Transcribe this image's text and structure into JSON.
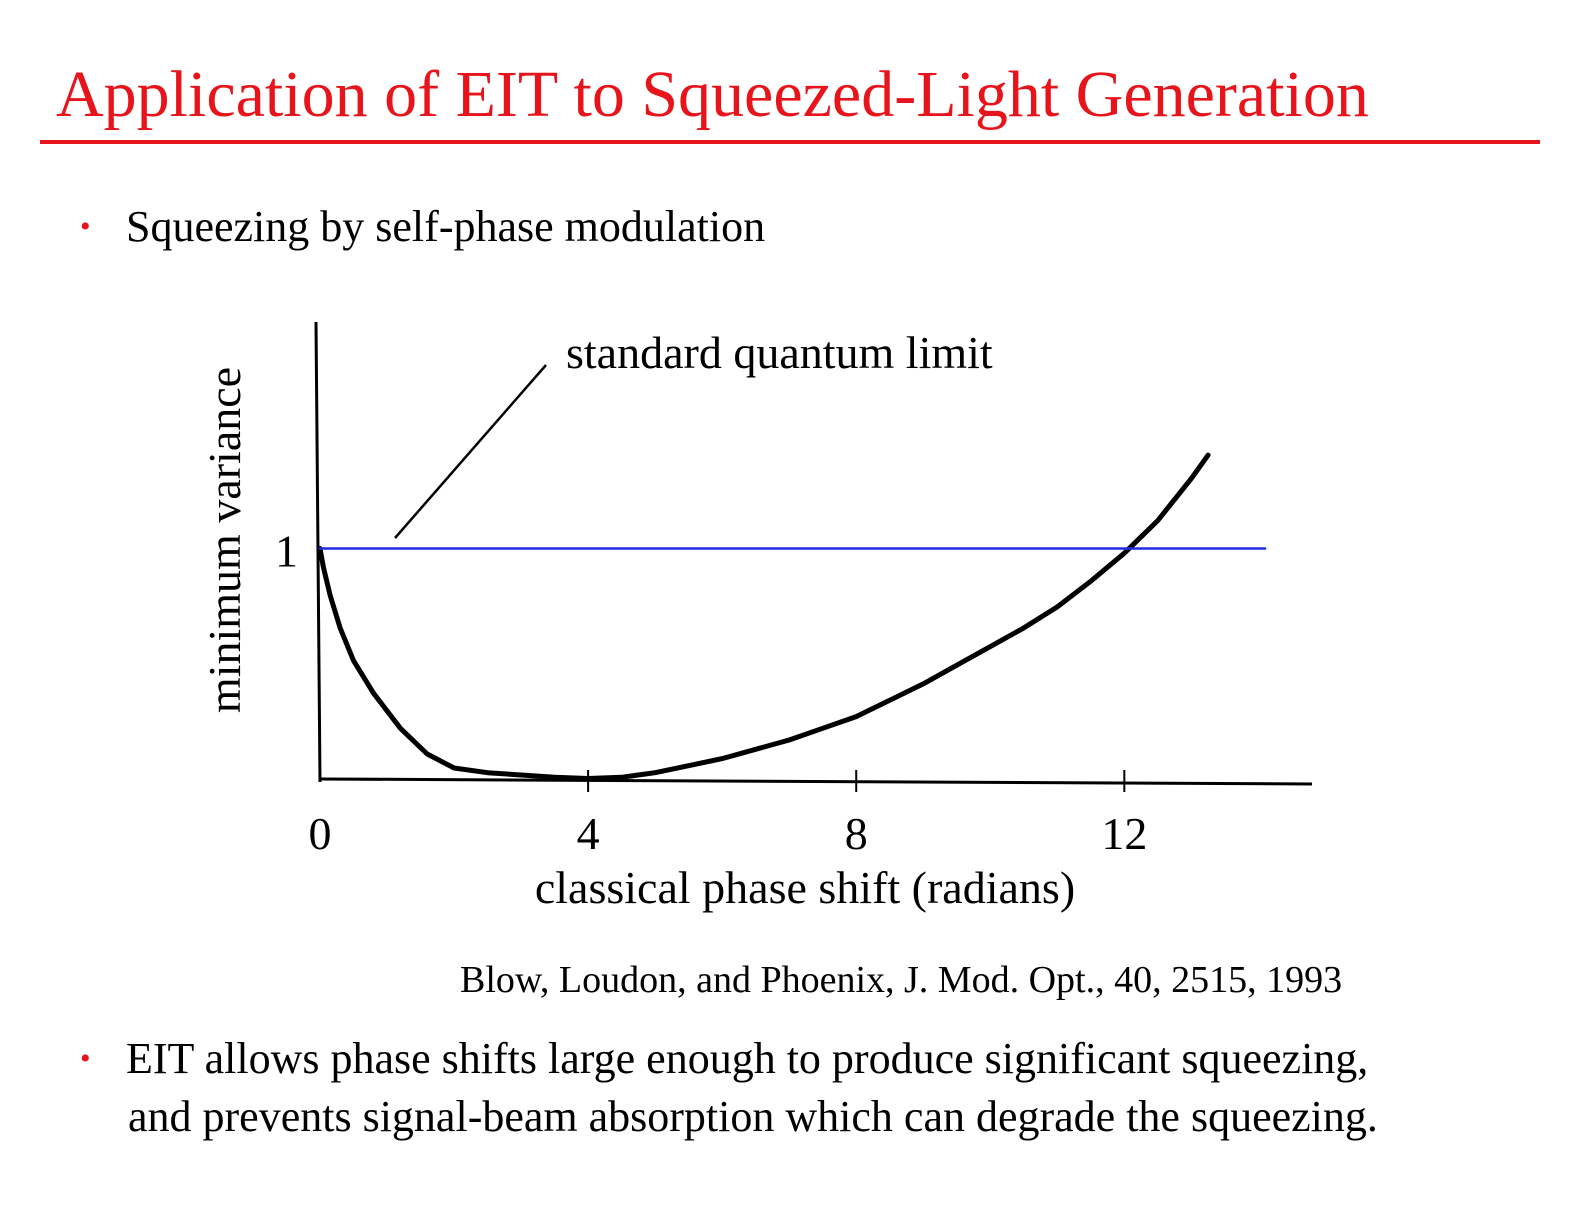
{
  "slide": {
    "title": "Application of  EIT to Squeezed-Light Generation",
    "bullet1": "Squeezing by self-phase modulation",
    "bullet2_line1": "EIT allows phase shifts large enough to produce significant squeezing,",
    "bullet2_line2": "and prevents signal-beam absorption which can degrade the squeezing.",
    "bullet_symbol": "•",
    "citation": "Blow, Loudon, and Phoenix, J. Mod. Opt., 40, 2515, 1993",
    "accent_color": "#e8141b"
  },
  "chart_data": {
    "type": "line",
    "title": "",
    "xlabel": "classical phase shift (radians)",
    "ylabel": "minimum variance",
    "x_ticks": [
      0,
      4,
      8,
      12
    ],
    "y_ticks": [
      1
    ],
    "xlim": [
      0,
      14.8
    ],
    "ylim": [
      0,
      1.97
    ],
    "annotation": "standard quantum limit",
    "series": [
      {
        "color": "#000000",
        "x": [
          0.0,
          0.05,
          0.15,
          0.3,
          0.5,
          0.8,
          1.2,
          1.6,
          2.0,
          2.5,
          3.0,
          3.5,
          4.0,
          4.5,
          5.0,
          5.5,
          6.0,
          6.5,
          7.0,
          7.5,
          8.0,
          8.5,
          9.0,
          9.5,
          10.0,
          10.5,
          11.0,
          11.5,
          12.0,
          12.5,
          13.0,
          13.25
        ],
        "y": [
          1.0,
          0.92,
          0.8,
          0.66,
          0.52,
          0.38,
          0.23,
          0.12,
          0.06,
          0.04,
          0.03,
          0.02,
          0.015,
          0.02,
          0.04,
          0.07,
          0.1,
          0.14,
          0.18,
          0.23,
          0.28,
          0.35,
          0.42,
          0.5,
          0.58,
          0.66,
          0.75,
          0.86,
          0.98,
          1.12,
          1.3,
          1.4
        ]
      },
      {
        "color": "#1f2ee0",
        "x": [
          0.0,
          14.1
        ],
        "y": [
          1.0,
          1.0
        ]
      }
    ]
  }
}
